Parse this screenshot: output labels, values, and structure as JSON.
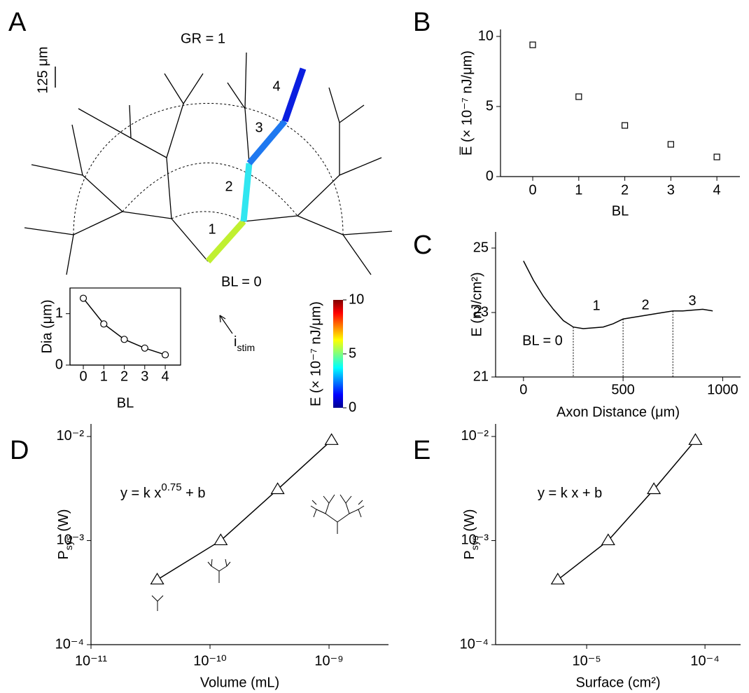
{
  "panel_labels": [
    "A",
    "B",
    "C",
    "D",
    "E"
  ],
  "diagram": {
    "gr_label": "GR = 1",
    "scale_bar": "125 μm",
    "branch_labels": [
      "4",
      "3",
      "2",
      "1"
    ],
    "bl_label": "BL = 0",
    "stim_label": "i",
    "stim_sub": "stim"
  },
  "colorbar": {
    "label": "E (× 10⁻⁷ nJ/μm)",
    "lim": [
      0,
      10
    ],
    "ticks": [
      0,
      5,
      10
    ]
  },
  "chart_data": [
    {
      "type": "line",
      "x_label": "BL",
      "y_label": "Dia (μm)",
      "x": [
        0,
        1,
        2,
        3,
        4
      ],
      "values": [
        1.3,
        0.8,
        0.5,
        0.33,
        0.2
      ],
      "color": "#000000",
      "marker": "circle",
      "xlim": [
        -0.65,
        4.75
      ],
      "ylim": [
        0,
        1.5
      ],
      "xticks": [
        0,
        1,
        2,
        3,
        4
      ],
      "yticks": [
        0,
        1
      ]
    },
    {
      "type": "scatter",
      "x_label": "BL",
      "y_label": "E̅ (× 10⁻⁷ nJ/μm)",
      "x": [
        0,
        1,
        2,
        3,
        4
      ],
      "values": [
        9.4,
        5.7,
        3.65,
        2.3,
        1.4
      ],
      "color": "#000000",
      "marker": "square",
      "xlim": [
        -0.7,
        4.5
      ],
      "ylim": [
        0,
        10.5
      ],
      "xticks": [
        0,
        1,
        2,
        3,
        4
      ],
      "yticks": [
        0,
        5,
        10
      ]
    },
    {
      "type": "line",
      "x_label": "Axon Distance (μm)",
      "y_label": "E (nJ/cm²)",
      "x": [
        0,
        50,
        100,
        150,
        200,
        250,
        300,
        400,
        450,
        500,
        600,
        700,
        750,
        800,
        900,
        950
      ],
      "values": [
        24.6,
        24.0,
        23.5,
        23.1,
        22.75,
        22.55,
        22.5,
        22.55,
        22.65,
        22.8,
        22.9,
        23.0,
        23.05,
        23.05,
        23.1,
        23.05
      ],
      "color": "#000000",
      "xlim": [
        -140,
        1090
      ],
      "ylim": [
        21,
        25.5
      ],
      "xticks": [
        0,
        500,
        1000
      ],
      "yticks": [
        21,
        23,
        25
      ],
      "boundaries": [
        250,
        500,
        750
      ],
      "boundary_labels": [
        "BL = 0",
        "1",
        "2",
        "3"
      ]
    },
    {
      "type": "line",
      "log_x": true,
      "log_y": true,
      "x_label": "Volume (mL)",
      "y_label": "P",
      "y_label_sub": "sys",
      "y_label_unit": " (W)",
      "equation": "y = k x",
      "equation_sup": "0.75",
      "equation_tail": " + b",
      "x": [
        3.6e-11,
        1.23e-10,
        3.7e-10,
        1.05e-09
      ],
      "values": [
        0.00042,
        0.001,
        0.0031,
        0.0092
      ],
      "color": "#000000",
      "marker": "triangle",
      "xlim": [
        1e-11,
        3.16e-09
      ],
      "ylim": [
        0.0001,
        0.0132
      ],
      "xticks": [
        {
          "value": 1e-11,
          "label": "10⁻¹¹"
        },
        {
          "value": 1e-10,
          "label": "10⁻¹⁰"
        },
        {
          "value": 1e-09,
          "label": "10⁻⁹"
        }
      ],
      "yticks": [
        {
          "value": 0.0001,
          "label": "10⁻⁴"
        },
        {
          "value": 0.001,
          "label": "10⁻³"
        },
        {
          "value": 0.01,
          "label": "10⁻²"
        }
      ]
    },
    {
      "type": "line",
      "log_x": true,
      "log_y": true,
      "x_label": "Surface (cm²)",
      "y_label": "P",
      "y_label_sub": "sys",
      "y_label_unit": " (W)",
      "equation": "y = k x + b",
      "x": [
        5.7e-06,
        1.52e-05,
        3.7e-05,
        8.3e-05
      ],
      "values": [
        0.00042,
        0.001,
        0.0031,
        0.0092
      ],
      "color": "#000000",
      "marker": "triangle",
      "xlim": [
        1.7e-06,
        0.0002
      ],
      "ylim": [
        0.0001,
        0.0132
      ],
      "xticks": [
        {
          "value": 1e-05,
          "label": "10⁻⁵"
        },
        {
          "value": 0.0001,
          "label": "10⁻⁴"
        }
      ],
      "yticks": [
        {
          "value": 0.0001,
          "label": "10⁻⁴"
        },
        {
          "value": 0.001,
          "label": "10⁻³"
        },
        {
          "value": 0.01,
          "label": "10⁻²"
        }
      ]
    }
  ]
}
